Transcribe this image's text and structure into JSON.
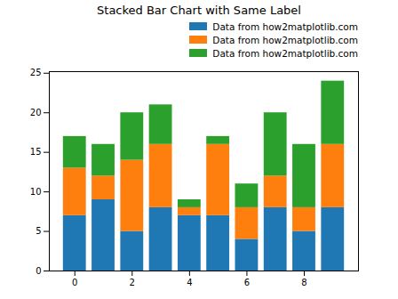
{
  "chart_data": {
    "type": "bar",
    "title": "Stacked Bar Chart with Same Label",
    "stacked": true,
    "legend": "upper right",
    "x": [
      0,
      1,
      2,
      3,
      4,
      5,
      6,
      7,
      8,
      9
    ],
    "xlim": [
      -0.89,
      9.89
    ],
    "xticks": [
      0,
      2,
      4,
      6,
      8
    ],
    "ylim": [
      0,
      25.2
    ],
    "yticks": [
      0,
      5,
      10,
      15,
      20,
      25
    ],
    "series": [
      {
        "name": "Data from how2matplotlib.com",
        "color": "#1f77b4",
        "values": [
          7,
          9,
          5,
          8,
          7,
          7,
          4,
          8,
          5,
          8
        ]
      },
      {
        "name": "Data from how2matplotlib.com",
        "color": "#ff7f0e",
        "values": [
          6,
          3,
          9,
          8,
          1,
          9,
          4,
          4,
          3,
          8
        ]
      },
      {
        "name": "Data from how2matplotlib.com",
        "color": "#2ca02c",
        "values": [
          4,
          4,
          6,
          5,
          1,
          1,
          3,
          8,
          8,
          8
        ]
      }
    ]
  }
}
